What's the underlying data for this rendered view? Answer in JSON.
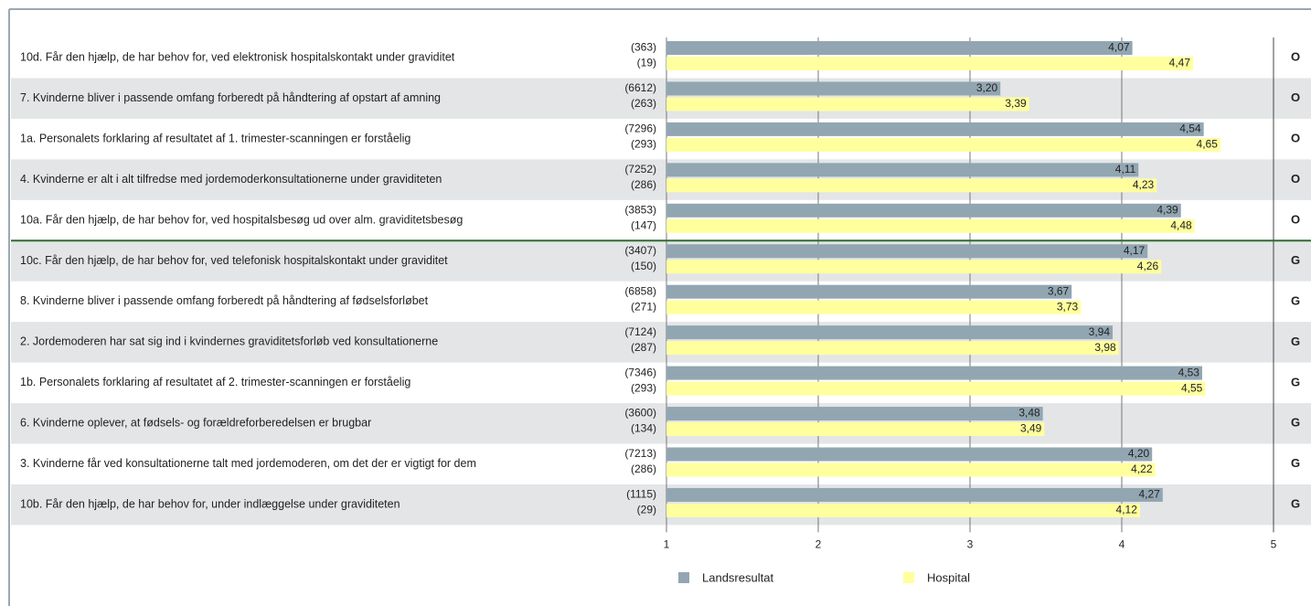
{
  "chart_data": {
    "type": "bar",
    "categories": [
      "10d. Får den hjælp, de har behov for, ved elektronisk hospitalskontakt under graviditet",
      "7. Kvinderne bliver i passende omfang forberedt på håndtering af opstart af amning",
      "1a. Personalets forklaring af resultatet af 1. trimester-scanningen er forståelig",
      "4. Kvinderne er alt i alt tilfredse med jordemoderkonsultationerne under graviditeten",
      "10a. Får den hjælp, de har behov for, ved hospitalsbesøg ud over alm. graviditetsbesøg",
      "10c. Får den hjælp, de har behov for, ved telefonisk hospitalskontakt under graviditet",
      "8. Kvinderne bliver i passende omfang forberedt på håndtering af fødselsforløbet",
      "2. Jordemoderen har sat sig ind i kvindernes graviditetsforløb ved konsultationerne",
      "1b. Personalets forklaring af resultatet af 2. trimester-scanningen er forståelig",
      "6. Kvinderne oplever, at fødsels- og forældreforberedelsen er brugbar",
      "3. Kvinderne får ved konsultationerne talt med jordemoderen, om det der er vigtigt for dem",
      "10b. Får den hjælp, de har behov for, under indlæggelse under graviditeten"
    ],
    "status": [
      "O",
      "O",
      "O",
      "O",
      "O",
      "G",
      "G",
      "G",
      "G",
      "G",
      "G",
      "G"
    ],
    "series": [
      {
        "name": "Landsresultat",
        "color": "#92a6b2",
        "values": [
          4.07,
          3.2,
          4.54,
          4.11,
          4.39,
          4.17,
          3.67,
          3.94,
          4.53,
          3.48,
          4.2,
          4.27
        ],
        "value_labels": [
          "4,07",
          "3,20",
          "4,54",
          "4,11",
          "4,39",
          "4,17",
          "3,67",
          "3,94",
          "4,53",
          "3,48",
          "4,20",
          "4,27"
        ],
        "counts": [
          "(363)",
          "(6612)",
          "(7296)",
          "(7252)",
          "(3853)",
          "(3407)",
          "(6858)",
          "(7124)",
          "(7346)",
          "(3600)",
          "(7213)",
          "(1115)"
        ]
      },
      {
        "name": "Hospital",
        "color": "#ffff9e",
        "values": [
          4.47,
          3.39,
          4.65,
          4.23,
          4.48,
          4.26,
          3.73,
          3.98,
          4.55,
          3.49,
          4.22,
          4.12
        ],
        "value_labels": [
          "4,47",
          "3,39",
          "4,65",
          "4,23",
          "4,48",
          "4,26",
          "3,73",
          "3,98",
          "4,55",
          "3,49",
          "4,22",
          "4,12"
        ],
        "counts": [
          "(19)",
          "(263)",
          "(293)",
          "(286)",
          "(147)",
          "(150)",
          "(271)",
          "(287)",
          "(293)",
          "(134)",
          "(286)",
          "(29)"
        ]
      }
    ],
    "xlim": [
      1,
      5
    ],
    "xticks": [
      1,
      2,
      3,
      4,
      5
    ]
  }
}
